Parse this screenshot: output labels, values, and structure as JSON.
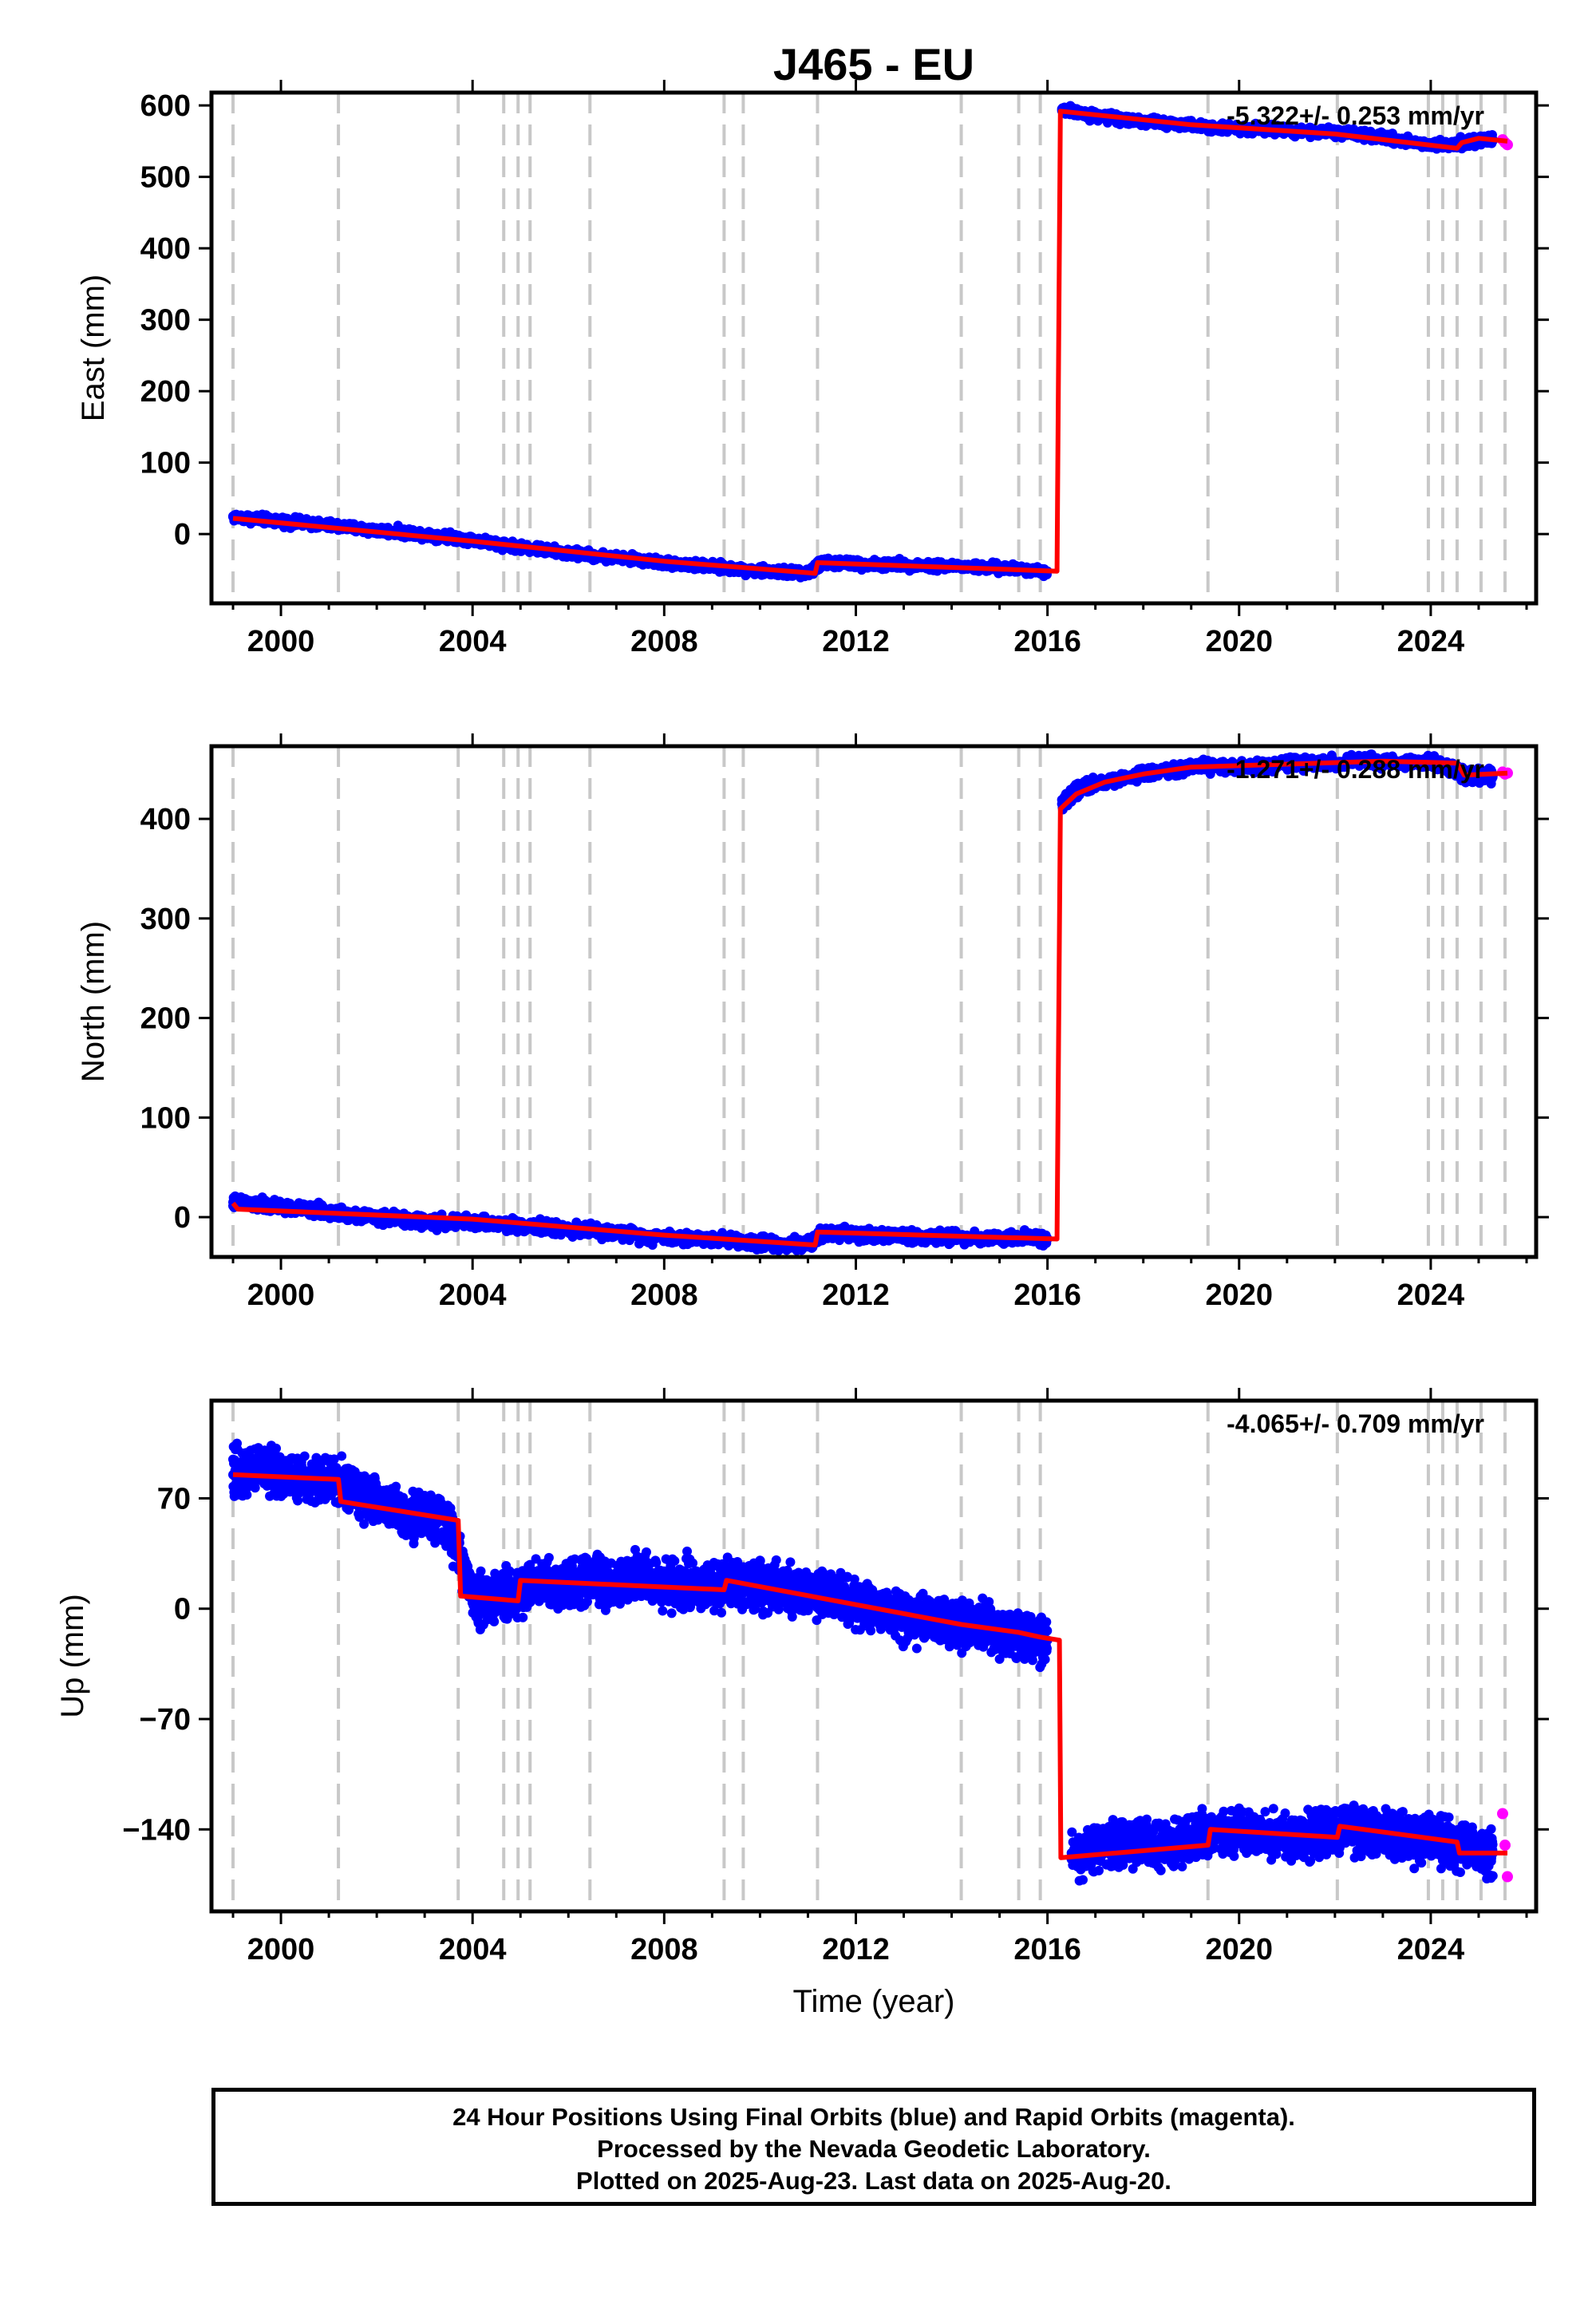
{
  "title": "J465 - EU",
  "colors": {
    "final": "#0000ff",
    "rapid": "#ff00ff",
    "model": "#ff0000",
    "events": "#c8c8c8"
  },
  "footer": {
    "line1": "24 Hour Positions Using Final Orbits (blue) and Rapid Orbits (magenta).",
    "line2": "Processed by the Nevada Geodetic Laboratory.",
    "line3": "Plotted on 2025-Aug-23. Last data on 2025-Aug-20."
  },
  "chart_data": [
    {
      "type": "scatter",
      "ylabel": "East (mm)",
      "rate": "-5.322+/- 0.253 mm/yr",
      "xlim": [
        1998.55,
        2026.2
      ],
      "ylim": [
        -97,
        618
      ],
      "xticks": [
        2000,
        2004,
        2008,
        2012,
        2016,
        2020,
        2024
      ],
      "yticks": [
        0,
        100,
        200,
        300,
        400,
        500,
        600
      ],
      "event_years": [
        1999.0,
        2001.2,
        2003.7,
        2004.65,
        2004.95,
        2005.2,
        2006.45,
        2009.25,
        2009.65,
        2011.2,
        2014.2,
        2015.4,
        2015.85,
        2019.35,
        2022.05,
        2023.95,
        2024.25,
        2024.55,
        2025.05,
        2025.55
      ],
      "model": [
        [
          1999.0,
          22
        ],
        [
          2004.0,
          -10
        ],
        [
          2008.0,
          -38
        ],
        [
          2011.15,
          -55
        ],
        [
          2011.2,
          -40
        ],
        [
          2016.2,
          -52
        ],
        [
          2016.27,
          592
        ],
        [
          2019.0,
          573
        ],
        [
          2022.0,
          560
        ],
        [
          2024.55,
          540
        ],
        [
          2024.65,
          548
        ],
        [
          2025.0,
          554
        ],
        [
          2025.6,
          550
        ]
      ],
      "series": [
        {
          "name": "Final Orbits",
          "x": [
            1999.0,
            2000.0,
            2001.0,
            2002.0,
            2003.0,
            2004.0,
            2005.0,
            2006.0,
            2007.0,
            2008.0,
            2009.0,
            2010.0,
            2011.0,
            2011.3,
            2012.0,
            2013.0,
            2014.0,
            2015.0,
            2016.0,
            2016.3,
            2017.0,
            2018.0,
            2019.0,
            2020.0,
            2021.0,
            2022.0,
            2023.0,
            2024.0,
            2024.8,
            2025.3
          ],
          "y": [
            24,
            18,
            12,
            5,
            0,
            -8,
            -18,
            -27,
            -33,
            -40,
            -46,
            -52,
            -55,
            -40,
            -42,
            -43,
            -45,
            -48,
            -52,
            595,
            585,
            578,
            572,
            568,
            565,
            562,
            555,
            545,
            548,
            552
          ]
        },
        {
          "name": "Rapid Orbits",
          "x": [
            2025.5,
            2025.55,
            2025.6
          ],
          "y": [
            552,
            548,
            545
          ]
        }
      ]
    },
    {
      "type": "scatter",
      "ylabel": "North (mm)",
      "rate": "-1.271+/- 0.288 mm/yr",
      "xlim": [
        1998.55,
        2026.2
      ],
      "ylim": [
        -40,
        473
      ],
      "xticks": [
        2000,
        2004,
        2008,
        2012,
        2016,
        2020,
        2024
      ],
      "yticks": [
        0,
        100,
        200,
        300,
        400
      ],
      "event_years": [
        1999.0,
        2001.2,
        2003.7,
        2004.65,
        2004.95,
        2005.2,
        2006.45,
        2009.25,
        2009.65,
        2011.2,
        2014.2,
        2015.4,
        2015.85,
        2019.35,
        2022.05,
        2023.95,
        2024.25,
        2024.55,
        2025.05,
        2025.55
      ],
      "model": [
        [
          1999.0,
          14
        ],
        [
          1999.1,
          8
        ],
        [
          2004.0,
          -2
        ],
        [
          2008.0,
          -18
        ],
        [
          2011.15,
          -28
        ],
        [
          2011.2,
          -15
        ],
        [
          2016.2,
          -22
        ],
        [
          2016.27,
          410
        ],
        [
          2016.6,
          425
        ],
        [
          2017.2,
          437
        ],
        [
          2018.0,
          445
        ],
        [
          2019.0,
          452
        ],
        [
          2021.0,
          455
        ],
        [
          2023.0,
          458
        ],
        [
          2024.55,
          456
        ],
        [
          2024.7,
          444
        ],
        [
          2025.6,
          446
        ]
      ],
      "series": [
        {
          "name": "Final Orbits",
          "x": [
            1999.0,
            2000.0,
            2001.0,
            2002.0,
            2003.0,
            2004.0,
            2005.0,
            2006.0,
            2007.0,
            2008.0,
            2009.0,
            2010.0,
            2011.0,
            2011.3,
            2012.0,
            2013.0,
            2014.0,
            2015.0,
            2016.0,
            2016.3,
            2016.6,
            2017.0,
            2018.0,
            2019.0,
            2020.0,
            2021.0,
            2022.0,
            2023.0,
            2024.0,
            2024.8,
            2025.3
          ],
          "y": [
            15,
            10,
            5,
            0,
            -5,
            -5,
            -8,
            -12,
            -16,
            -20,
            -22,
            -25,
            -28,
            -15,
            -17,
            -19,
            -20,
            -21,
            -22,
            415,
            428,
            435,
            445,
            452,
            452,
            455,
            456,
            458,
            457,
            443,
            444
          ]
        },
        {
          "name": "Rapid Orbits",
          "x": [
            2025.5,
            2025.55,
            2025.6
          ],
          "y": [
            447,
            445,
            446
          ]
        }
      ]
    },
    {
      "type": "scatter",
      "xlabel": "Time (year)",
      "ylabel": "Up (mm)",
      "rate": "-4.065+/- 0.709 mm/yr",
      "xlim": [
        1998.55,
        2026.2
      ],
      "ylim": [
        -192,
        132
      ],
      "xticks": [
        2000,
        2004,
        2008,
        2012,
        2016,
        2020,
        2024
      ],
      "yticks": [
        70,
        0,
        -70,
        -140
      ],
      "event_years": [
        1999.0,
        2001.2,
        2003.7,
        2004.65,
        2004.95,
        2005.2,
        2006.45,
        2009.25,
        2009.65,
        2011.2,
        2014.2,
        2015.4,
        2015.85,
        2019.35,
        2022.05,
        2023.95,
        2024.25,
        2024.55,
        2025.05,
        2025.55
      ],
      "model": [
        [
          1999.0,
          85
        ],
        [
          2001.2,
          82
        ],
        [
          2001.25,
          68
        ],
        [
          2003.7,
          56
        ],
        [
          2003.75,
          8
        ],
        [
          2004.95,
          5
        ],
        [
          2005.0,
          18
        ],
        [
          2009.25,
          12
        ],
        [
          2009.3,
          18
        ],
        [
          2014.2,
          -10
        ],
        [
          2015.4,
          -15
        ],
        [
          2015.85,
          -18
        ],
        [
          2016.25,
          -20
        ],
        [
          2016.28,
          -158
        ],
        [
          2019.35,
          -150
        ],
        [
          2019.4,
          -140
        ],
        [
          2022.05,
          -145
        ],
        [
          2022.1,
          -138
        ],
        [
          2024.55,
          -148
        ],
        [
          2024.6,
          -155
        ],
        [
          2025.6,
          -155
        ]
      ],
      "series": [
        {
          "name": "Final Orbits",
          "x": [
            1999.0,
            1999.5,
            2000.0,
            2000.5,
            2001.0,
            2001.5,
            2002.0,
            2002.5,
            2003.0,
            2003.5,
            2004.0,
            2004.5,
            2005.0,
            2005.5,
            2006.0,
            2006.5,
            2007.0,
            2007.5,
            2008.0,
            2008.5,
            2009.0,
            2009.5,
            2010.0,
            2010.5,
            2011.0,
            2011.5,
            2012.0,
            2012.5,
            2013.0,
            2013.5,
            2014.0,
            2014.5,
            2015.0,
            2015.5,
            2016.0,
            2016.5,
            2017.0,
            2017.5,
            2018.0,
            2018.5,
            2019.0,
            2019.5,
            2020.0,
            2020.5,
            2021.0,
            2021.5,
            2022.0,
            2022.5,
            2023.0,
            2023.5,
            2024.0,
            2024.5,
            2025.0,
            2025.3
          ],
          "y": [
            85,
            90,
            85,
            80,
            82,
            75,
            68,
            62,
            58,
            55,
            8,
            6,
            12,
            18,
            14,
            20,
            16,
            22,
            14,
            18,
            12,
            16,
            14,
            12,
            10,
            8,
            4,
            0,
            -4,
            -8,
            -10,
            -12,
            -14,
            -16,
            -20,
            -155,
            -152,
            -150,
            -148,
            -150,
            -147,
            -142,
            -140,
            -143,
            -145,
            -144,
            -142,
            -140,
            -142,
            -145,
            -146,
            -150,
            -153,
            -155
          ]
        },
        {
          "name": "Rapid Orbits",
          "x": [
            2025.5,
            2025.55,
            2025.6
          ],
          "y": [
            -130,
            -150,
            -170
          ]
        }
      ]
    }
  ]
}
